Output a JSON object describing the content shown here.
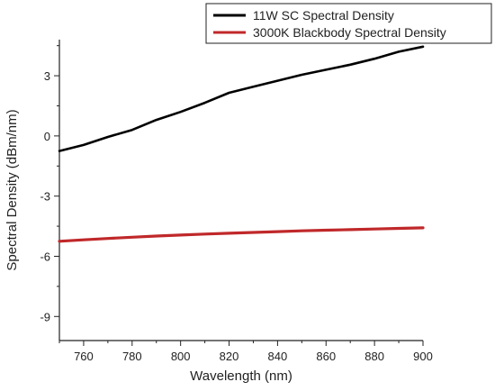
{
  "chart_data": {
    "type": "line",
    "xlabel": "Wavelength (nm)",
    "ylabel": "Spectral Density (dBm/nm)",
    "xlim": [
      750,
      900
    ],
    "ylim": [
      -10.2,
      4.8
    ],
    "xticks": [
      760,
      780,
      800,
      820,
      840,
      860,
      880,
      900
    ],
    "yticks": [
      -9,
      -6,
      -3,
      0,
      3
    ],
    "grid": false,
    "legend_position": "top-right",
    "series": [
      {
        "name": "11W SC Spectral Density",
        "color": "#000000",
        "x": [
          750,
          760,
          770,
          780,
          790,
          800,
          810,
          820,
          830,
          840,
          850,
          860,
          870,
          880,
          890,
          900
        ],
        "y": [
          -0.75,
          -0.45,
          -0.05,
          0.3,
          0.8,
          1.2,
          1.65,
          2.15,
          2.45,
          2.75,
          3.05,
          3.3,
          3.55,
          3.85,
          4.2,
          4.45
        ]
      },
      {
        "name": "3000K Blackbody Spectral Density",
        "color": "#c0282a",
        "x": [
          750,
          760,
          770,
          780,
          790,
          800,
          810,
          820,
          830,
          840,
          850,
          860,
          870,
          880,
          890,
          900
        ],
        "y": [
          -5.25,
          -5.18,
          -5.11,
          -5.05,
          -4.99,
          -4.94,
          -4.89,
          -4.85,
          -4.81,
          -4.77,
          -4.73,
          -4.7,
          -4.67,
          -4.64,
          -4.61,
          -4.58
        ]
      }
    ]
  }
}
